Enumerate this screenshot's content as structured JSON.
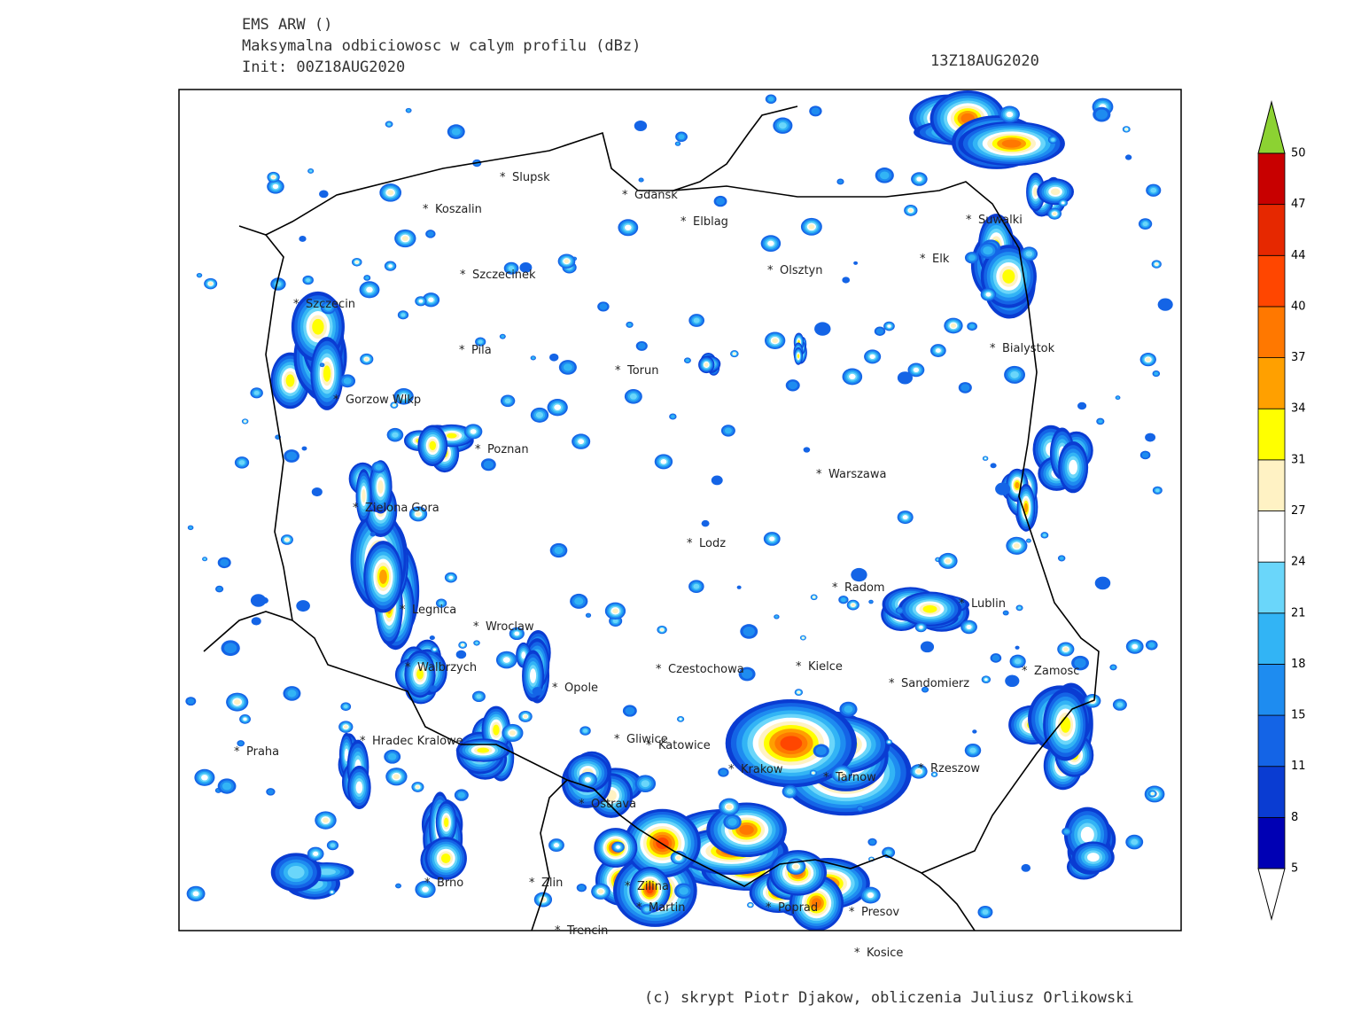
{
  "header": {
    "model": "EMS ARW ()",
    "product": "Maksymalna odbiciowosc w calym profilu (dBz)",
    "init": "Init: 00Z18AUG2020",
    "valid": "13Z18AUG2020"
  },
  "cities": [
    "Slupsk",
    "Koszalin",
    "Gdansk",
    "Elblag",
    "Suwalki",
    "Szczecinek",
    "Olsztyn",
    "Elk",
    "Szczecin",
    "Pila",
    "Torun",
    "Bialystok",
    "Gorzow Wlkp",
    "Poznan",
    "Warszawa",
    "Zielona Gora",
    "Lodz",
    "Radom",
    "Lublin",
    "Legnica",
    "Wroclaw",
    "Walbrzych",
    "Czestochowa",
    "Kielce",
    "Zamosc",
    "Sandomierz",
    "Opole",
    "Hradec Kralowe",
    "Praha",
    "Gliwice",
    "Katowice",
    "Krakow",
    "Tarnow",
    "Rzeszow",
    "Ostrava",
    "Brno",
    "Zlin",
    "Zilina",
    "Martin",
    "Poprad",
    "Presov",
    "Trencin",
    "Kosice"
  ],
  "colorbar": {
    "levels": [
      5,
      8,
      11,
      15,
      18,
      21,
      24,
      27,
      31,
      34,
      37,
      40,
      44,
      47,
      50
    ],
    "colors": [
      "#0000b4",
      "#0a3cd2",
      "#1464e6",
      "#1e8cf0",
      "#32b4f5",
      "#6ad6fa",
      "#ffffff",
      "#fff2c4",
      "#ffff00",
      "#ffa000",
      "#ff7800",
      "#ff4600",
      "#e62800",
      "#c80000"
    ],
    "under_color": "#ffffff",
    "over_color": "#8cd232"
  },
  "credit": "(c) skrypt Piotr Djakow, obliczenia Juliusz Orlikowski"
}
